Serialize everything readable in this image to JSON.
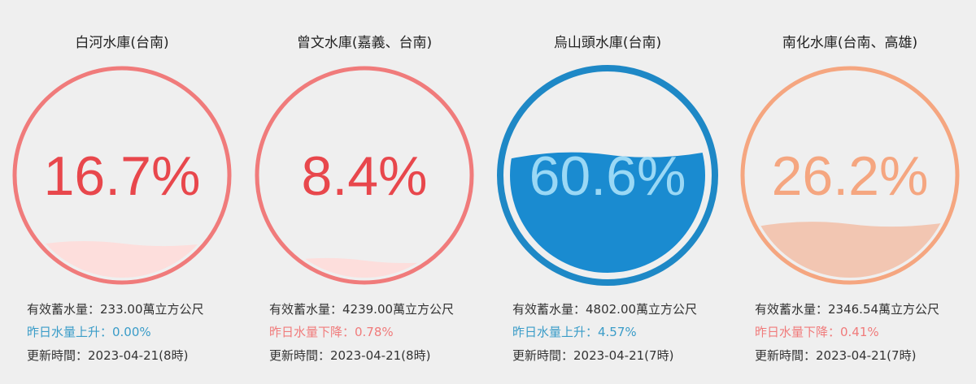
{
  "reservoirs": [
    {
      "name": "白河水庫(台南)",
      "percent": 16.7,
      "percent_label": "16.7%",
      "color": "#f07b7b",
      "text_color": "#e8474c",
      "fill_color": "#fddedc",
      "storage": "有效蓄水量：233.00萬立方公尺",
      "change": "昨日水量上升：0.00%",
      "change_color": "#3a9cc8",
      "updated": "更新時間：2023-04-21(8時)"
    },
    {
      "name": "曾文水庫(嘉義、台南)",
      "percent": 8.4,
      "percent_label": "8.4%",
      "color": "#f07b7b",
      "text_color": "#e8474c",
      "fill_color": "#fddedc",
      "storage": "有效蓄水量：4239.00萬立方公尺",
      "change": "昨日水量下降：0.78%",
      "change_color": "#f07b7b",
      "updated": "更新時間：2023-04-21(8時)"
    },
    {
      "name": "烏山頭水庫(台南)",
      "percent": 60.6,
      "percent_label": "60.6%",
      "color": "#1e88c6",
      "text_color": "#9ad8f5",
      "fill_color": "#1a8bd0",
      "storage": "有效蓄水量：4802.00萬立方公尺",
      "change": "昨日水量上升：4.57%",
      "change_color": "#3a9cc8",
      "updated": "更新時間：2023-04-21(7時)"
    },
    {
      "name": "南化水庫(台南、高雄)",
      "percent": 26.2,
      "percent_label": "26.2%",
      "color": "#f5a680",
      "text_color": "#f5a680",
      "fill_color": "#f2c6b2",
      "storage": "有效蓄水量：2346.54萬立方公尺",
      "change": "昨日水量下降：0.41%",
      "change_color": "#f07b7b",
      "updated": "更新時間：2023-04-21(7時)"
    }
  ]
}
